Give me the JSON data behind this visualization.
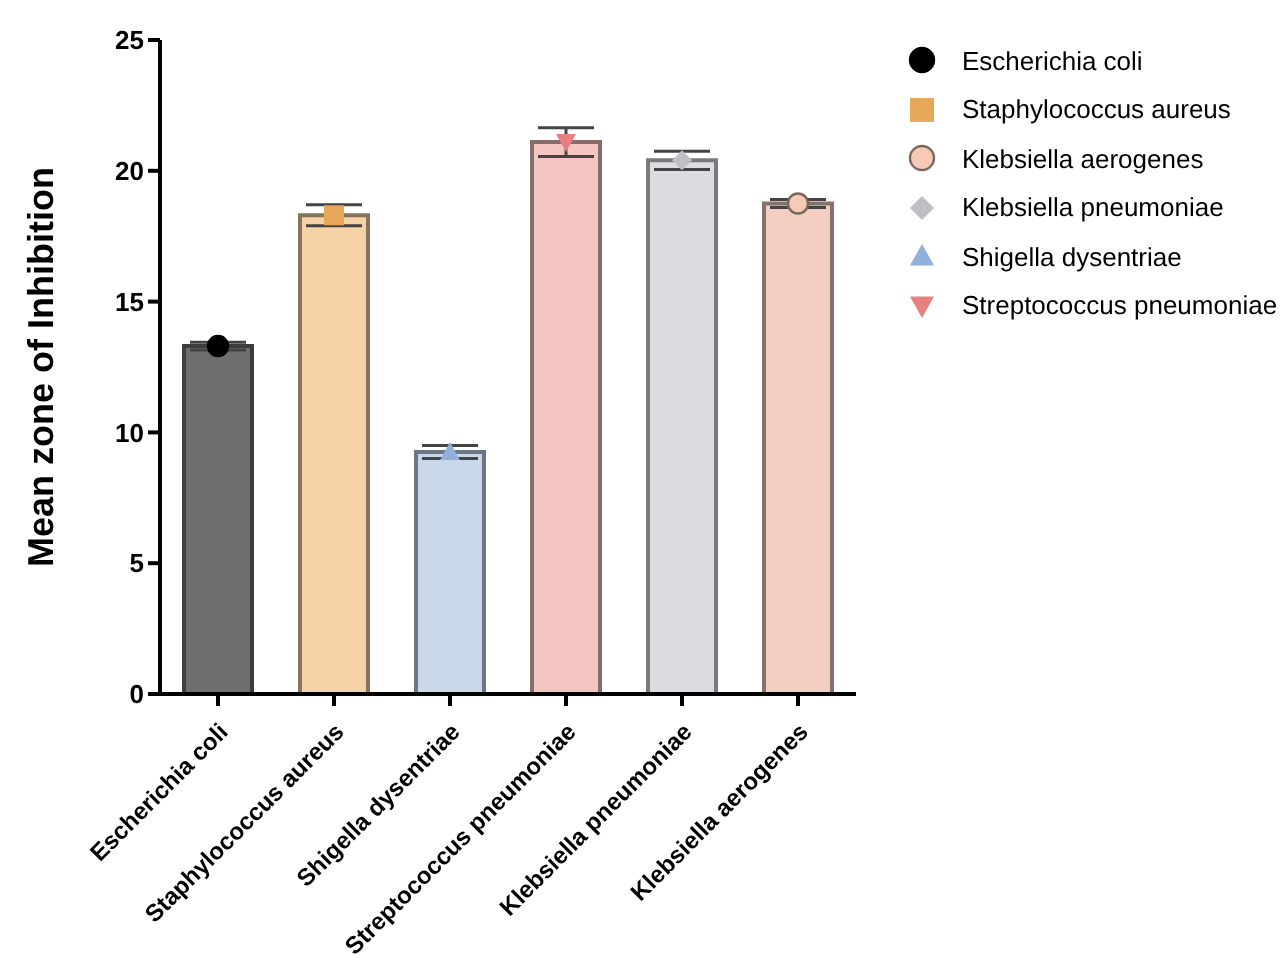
{
  "chart_data": {
    "type": "bar",
    "ylabel": "Mean zone of Inhibition",
    "categories": [
      "Escherichia coli",
      "Staphylococcus aureus",
      "Shigella dysentriae",
      "Streptococcus pneumoniae",
      "Klebsiella pneumoniae",
      "Klebsiella aerogenes"
    ],
    "values": [
      13.3,
      18.3,
      9.25,
      21.1,
      20.4,
      18.75
    ],
    "colors": [
      "#6e6e6e",
      "#f5d3a6",
      "#c8d8ea",
      "#f4c4c0",
      "#dcdde0",
      "#f2cfc0"
    ],
    "errors": [
      0.15,
      0.4,
      0.25,
      0.55,
      0.35,
      0.15
    ],
    "series": [
      {
        "type": "scatter",
        "name": "Escherichia coli",
        "color": "#000000",
        "marker": "circle",
        "values": [
          13.3,
          null,
          null,
          null,
          null,
          null
        ]
      },
      {
        "type": "scatter",
        "name": "Staphylococcus aureus",
        "color": "#e8a85a",
        "marker": "square",
        "values": [
          null,
          18.3,
          null,
          null,
          null,
          null
        ]
      },
      {
        "type": "scatter",
        "name": "Klebsiella aerogenes",
        "color": "#f5cbb8",
        "marker": "circle",
        "values": [
          null,
          null,
          null,
          null,
          null,
          18.75
        ]
      },
      {
        "type": "scatter",
        "name": "Klebsiella pneumoniae",
        "color": "#bfbfc4",
        "marker": "diamond",
        "values": [
          null,
          null,
          null,
          null,
          20.4,
          null
        ]
      },
      {
        "type": "scatter",
        "name": "Shigella dysentriae",
        "color": "#8fb0d8",
        "marker": "triangle",
        "values": [
          null,
          null,
          9.25,
          null,
          null,
          null
        ]
      },
      {
        "type": "scatter",
        "name": "Streptococcus pneumoniae",
        "color": "#e88080",
        "marker": "triangle-down",
        "values": [
          null,
          null,
          null,
          21.1,
          null,
          null
        ]
      }
    ],
    "ylim": [
      0,
      25
    ],
    "yticks": [
      0,
      5,
      10,
      15,
      20,
      25
    ],
    "grid": false,
    "legend": "right"
  }
}
